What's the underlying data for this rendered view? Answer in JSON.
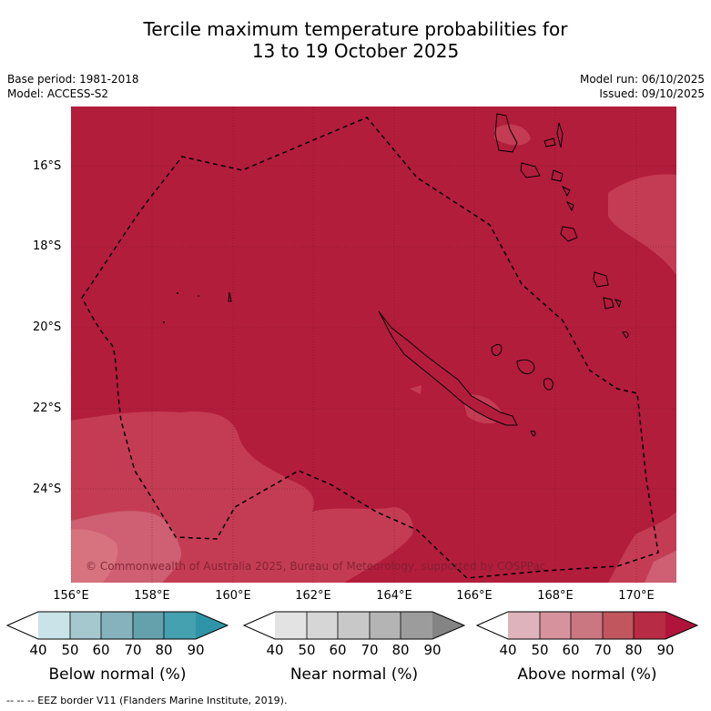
{
  "title_line1": "Tercile maximum temperature probabilities for",
  "title_line2": "13 to 19 October 2025",
  "base_period": "Base period: 1981-2018",
  "model": "Model: ACCESS-S2",
  "model_run": "Model run: 06/10/2025",
  "issued": "Issued: 09/10/2025",
  "copyright": "© Commonwealth of Australia 2025, Bureau of Meteorology, supported by COSPPac",
  "footer": "-- -- -- EEZ border V11 (Flanders Marine Institute, 2019).",
  "map": {
    "lat_labels": [
      "16°S",
      "18°S",
      "20°S",
      "22°S",
      "24°S"
    ],
    "lon_labels": [
      "156°E",
      "158°E",
      "160°E",
      "162°E",
      "164°E",
      "166°E",
      "168°E",
      "170°E"
    ],
    "colors": {
      "above_80_90": "#b31d3c",
      "above_70_80": "#c43c53",
      "above_60_70": "#cf5f72",
      "ocean_dark": "#a91a37"
    }
  },
  "colorbars": [
    {
      "name": "below",
      "label": "Below normal (%)",
      "ticks": [
        "40",
        "50",
        "60",
        "70",
        "80",
        "90"
      ],
      "colors": [
        "#ffffff",
        "#c9e3e8",
        "#a5c8cf",
        "#85b2bc",
        "#65a0ad",
        "#45a0b0",
        "#2e95a8"
      ]
    },
    {
      "name": "near",
      "label": "Near normal (%)",
      "ticks": [
        "40",
        "50",
        "60",
        "70",
        "80",
        "90"
      ],
      "colors": [
        "#ffffff",
        "#e3e3e3",
        "#d6d6d6",
        "#c8c8c8",
        "#b4b4b4",
        "#9c9c9c",
        "#848484"
      ]
    },
    {
      "name": "above",
      "label": "Above normal (%)",
      "ticks": [
        "40",
        "50",
        "60",
        "70",
        "80",
        "90"
      ],
      "colors": [
        "#ffffff",
        "#dfb3bb",
        "#d6939d",
        "#ca7781",
        "#c2565f",
        "#b72b44",
        "#b0143a"
      ]
    }
  ]
}
